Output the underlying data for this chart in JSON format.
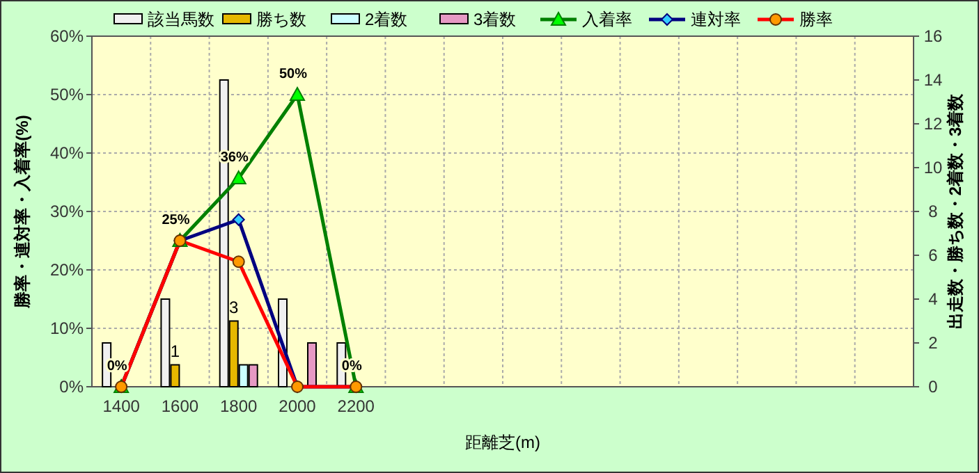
{
  "chart_data": {
    "type": "bar",
    "xlabel": "距離芝(m)",
    "ylabel": "勝率・連対率・入着率(%)",
    "y2label": "出走数・勝ち数・2着数・3着数",
    "categories": [
      "1400",
      "1600",
      "1800",
      "2000",
      "2200",
      null,
      null,
      null,
      null,
      null,
      null,
      null,
      null,
      null
    ],
    "ylim": [
      0,
      60
    ],
    "yticks": [
      {
        "value": 0,
        "label": "0%"
      },
      {
        "value": 10,
        "label": "10%"
      },
      {
        "value": 20,
        "label": "20%"
      },
      {
        "value": 30,
        "label": "30%"
      },
      {
        "value": 40,
        "label": "40%"
      },
      {
        "value": 50,
        "label": "50%"
      },
      {
        "value": 60,
        "label": "60%"
      }
    ],
    "y2lim": [
      0,
      16
    ],
    "y2ticks": [
      0,
      2,
      4,
      6,
      8,
      10,
      12,
      14,
      16
    ],
    "grid": true,
    "legend": "top",
    "series": [
      {
        "name": "該当馬数",
        "axis": "y2",
        "color": "#f0f0f0",
        "values": [
          2,
          4,
          14,
          4,
          2,
          null,
          null,
          null,
          null,
          null,
          null,
          null,
          null,
          null
        ]
      },
      {
        "name": "勝ち数",
        "axis": "y2",
        "color": "#e6b800",
        "values": [
          0,
          1,
          3,
          0,
          0,
          null,
          null,
          null,
          null,
          null,
          null,
          null,
          null,
          null
        ],
        "value_labels": [
          null,
          "1",
          "3",
          null,
          null,
          null,
          null,
          null,
          null,
          null,
          null,
          null,
          null,
          null
        ]
      },
      {
        "name": "2着数",
        "axis": "y2",
        "color": "#ccffff",
        "values": [
          0,
          0,
          1,
          0,
          0,
          null,
          null,
          null,
          null,
          null,
          null,
          null,
          null,
          null
        ]
      },
      {
        "name": "3着数",
        "axis": "y2",
        "color": "#e699c4",
        "values": [
          0,
          0,
          1,
          2,
          0,
          null,
          null,
          null,
          null,
          null,
          null,
          null,
          null,
          null
        ]
      },
      {
        "name": "入着率",
        "type": "line",
        "color": "#008000",
        "marker": "triangle",
        "values": [
          0,
          25,
          35.7,
          50,
          0,
          null,
          null,
          null,
          null,
          null,
          null,
          null,
          null,
          null
        ],
        "value_labels": [
          "0%",
          "25%",
          "36%",
          "50%",
          "0%",
          null,
          null,
          null,
          null,
          null,
          null,
          null,
          null,
          null
        ]
      },
      {
        "name": "連対率",
        "type": "line",
        "color": "#000080",
        "marker": "diamond",
        "values": [
          0,
          25,
          28.6,
          0,
          0,
          null,
          null,
          null,
          null,
          null,
          null,
          null,
          null,
          null
        ]
      },
      {
        "name": "勝率",
        "type": "line",
        "color": "#ff0000",
        "marker": "circle",
        "values": [
          0,
          25,
          21.4,
          0,
          0,
          null,
          null,
          null,
          null,
          null,
          null,
          null,
          null,
          null
        ]
      }
    ]
  }
}
